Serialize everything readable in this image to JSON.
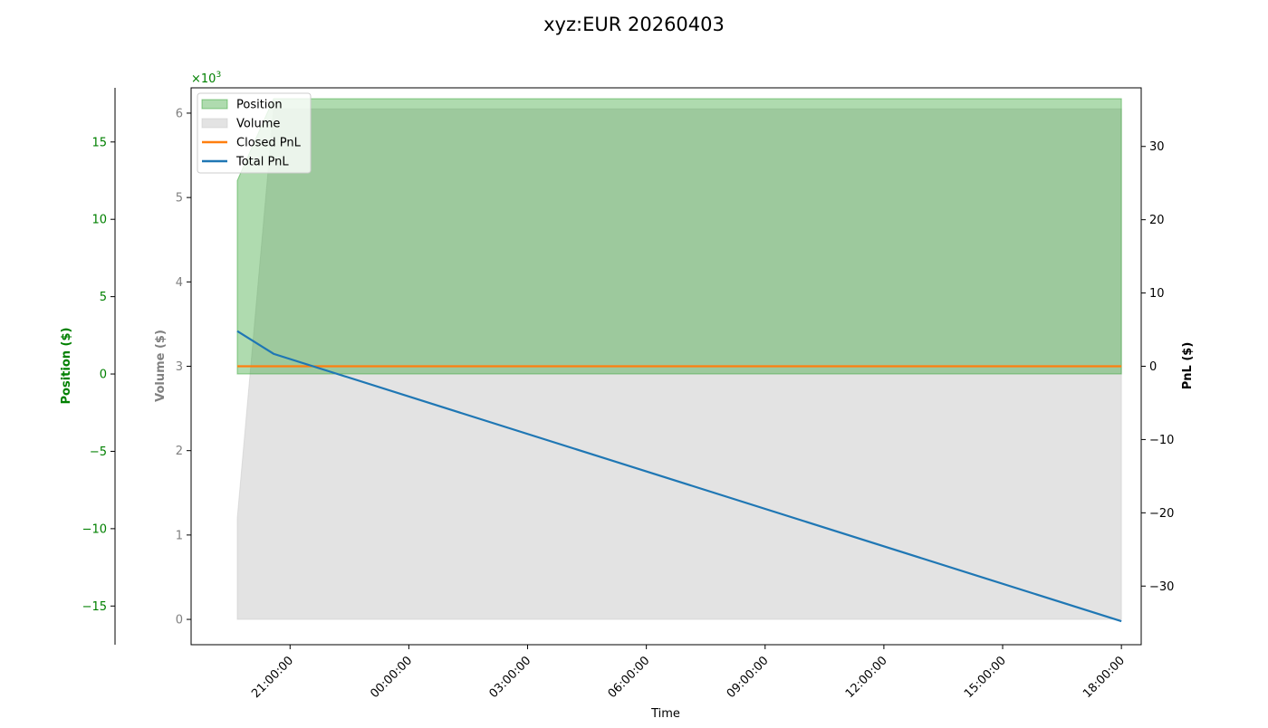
{
  "chart_data": {
    "type": "area",
    "title": "xyz:EUR 20260403",
    "xlabel": "Time",
    "x_ticks": [
      "21:00:00",
      "00:00:00",
      "03:00:00",
      "06:00:00",
      "09:00:00",
      "12:00:00",
      "15:00:00",
      "18:00:00"
    ],
    "x_range": [
      "2026-04-02 18:30",
      "2026-04-03 18:30"
    ],
    "axes": {
      "position": {
        "label": "Position ($)",
        "ylim": [
          -17.5,
          18.5
        ],
        "ticks": [
          -15,
          -10,
          -5,
          0,
          5,
          10,
          15
        ],
        "tick_labels": [
          "−15",
          "−10",
          "−5",
          "0",
          "5",
          "10",
          "15"
        ],
        "color": "#008000"
      },
      "volume": {
        "label": "Volume ($)",
        "ylim": [
          -0.3,
          6.3
        ],
        "ticks": [
          0,
          1,
          2,
          3,
          4,
          5,
          6
        ],
        "tick_labels": [
          "0",
          "1",
          "2",
          "3",
          "4",
          "5",
          "6"
        ],
        "offset_text": "×10",
        "offset_exponent": "3",
        "color": "#808080"
      },
      "pnl": {
        "label": "PnL ($)",
        "ylim": [
          -38,
          38
        ],
        "ticks": [
          -30,
          -20,
          -10,
          0,
          10,
          20,
          30
        ],
        "tick_labels": [
          "−30",
          "−20",
          "−10",
          "0",
          "10",
          "20",
          "30"
        ],
        "color": "#000000"
      }
    },
    "legend": {
      "placement": "upper-left",
      "entries": [
        {
          "label": "Position",
          "kind": "patch",
          "color": "#2ca02c"
        },
        {
          "label": "Volume",
          "kind": "patch",
          "color": "#c8c8c8"
        },
        {
          "label": "Closed PnL",
          "kind": "line",
          "color": "#ff7f0e"
        },
        {
          "label": "Total PnL",
          "kind": "line",
          "color": "#1f77b4"
        }
      ]
    },
    "series": [
      {
        "name": "Position",
        "axis": "position",
        "color": "#2ca02c",
        "points": [
          [
            "2026-04-02 19:40",
            12.5
          ],
          [
            "2026-04-02 20:35",
            17.8
          ],
          [
            "2026-04-03 18:00",
            17.8
          ]
        ]
      },
      {
        "name": "Volume",
        "axis": "volume",
        "color": "#c8c8c8",
        "points": [
          [
            "2026-04-02 19:40",
            1.2
          ],
          [
            "2026-04-02 20:35",
            6.05
          ],
          [
            "2026-04-03 18:00",
            6.05
          ]
        ]
      },
      {
        "name": "Closed PnL",
        "axis": "pnl",
        "color": "#ff7f0e",
        "points": [
          [
            "2026-04-02 19:40",
            0
          ],
          [
            "2026-04-03 18:00",
            0
          ]
        ]
      },
      {
        "name": "Total PnL",
        "axis": "pnl",
        "color": "#1f77b4",
        "points": [
          [
            "2026-04-02 19:40",
            4.8
          ],
          [
            "2026-04-02 20:35",
            1.7
          ],
          [
            "2026-04-03 18:00",
            -34.8
          ]
        ]
      }
    ]
  }
}
